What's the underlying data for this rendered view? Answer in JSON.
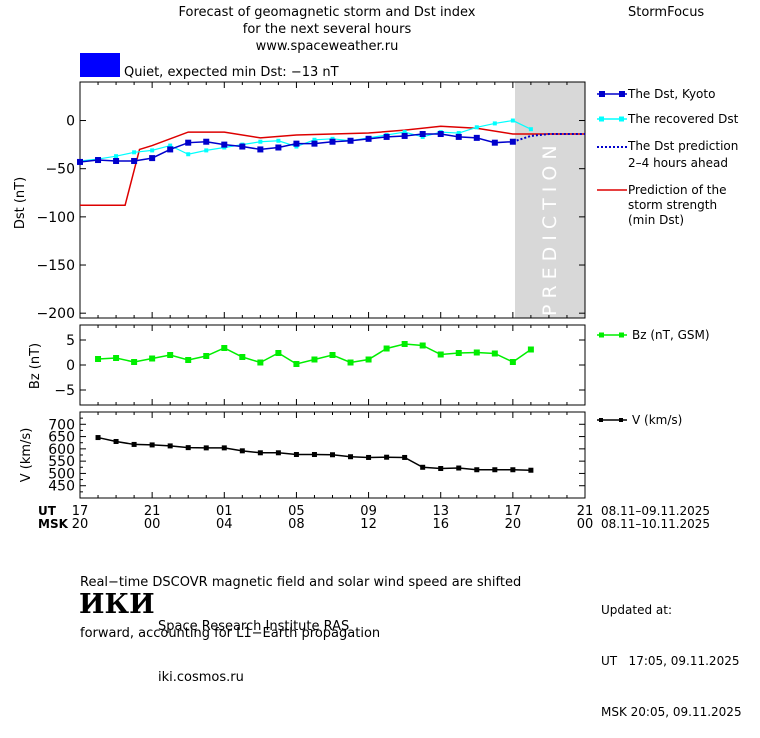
{
  "header": {
    "title_lines": [
      "Forecast of geomagnetic storm and Dst index",
      "for the next several hours",
      "www.spaceweather.ru"
    ],
    "brand": "StormFocus",
    "status_text": "Quiet, expected min Dst: −13 nT",
    "status_color": "#0000ff"
  },
  "legend": {
    "dst_kyoto": "The Dst, Kyoto",
    "dst_recovered": "The recovered Dst",
    "dst_prediction": [
      "The Dst prediction",
      "2–4 hours ahead"
    ],
    "storm_prediction": [
      "Prediction of the",
      "storm strength",
      "(min Dst)"
    ],
    "bz": "Bz (nT, GSM)",
    "v": "V (km/s)"
  },
  "time_axis": {
    "ut_label": "UT",
    "msk_label": "MSK",
    "ut_ticks": [
      "17",
      "21",
      "01",
      "05",
      "09",
      "13",
      "17",
      "21"
    ],
    "msk_ticks": [
      "20",
      "00",
      "04",
      "08",
      "12",
      "16",
      "20",
      "00"
    ],
    "ut_range": "08.11–09.11.2025",
    "msk_range": "08.11–10.11.2025"
  },
  "footer": {
    "note_lines": [
      "Real−time DSCOVR magnetic field and solar wind speed are shifted",
      "forward, accounting for L1−Earth propagation"
    ],
    "logo_text": "ИКИ",
    "institute": "Space Research Institute RAS",
    "site": "iki.cosmos.ru",
    "updated_label": "Updated at:",
    "updated_ut": "UT   17:05, 09.11.2025",
    "updated_msk": "MSK 20:05, 09.11.2025"
  },
  "colors": {
    "dst_kyoto": "#0000cc",
    "dst_recovered": "#00ffff",
    "dst_prediction": "#0000cc",
    "storm_prediction": "#dd0000",
    "bz": "#00ee00",
    "v": "#000000",
    "prediction_band": "#d8d8d8"
  },
  "chart_data": [
    {
      "type": "line",
      "ylabel": "Dst (nT)",
      "xlim": [
        0,
        28
      ],
      "ylim": [
        -205,
        40
      ],
      "yticks": [
        0,
        -50,
        -100,
        -150,
        -200
      ],
      "ytick_labels": [
        "0",
        "−50",
        "−100",
        "−150",
        "−200"
      ],
      "prediction_band": {
        "from": 24,
        "to": 28,
        "label": "PREDICTION"
      },
      "series": [
        {
          "name": "The Dst, Kyoto",
          "style": "line-squares",
          "x": [
            0,
            1,
            2,
            3,
            4,
            5,
            6,
            7,
            8,
            9,
            10,
            11,
            12,
            13,
            14,
            15,
            16,
            17,
            18,
            19,
            20,
            21,
            22,
            23,
            24
          ],
          "values": [
            -43,
            -41,
            -42,
            -42,
            -39,
            -30,
            -23,
            -22,
            -25,
            -27,
            -30,
            -28,
            -24,
            -24,
            -22,
            -21,
            -19,
            -17,
            -16,
            -14,
            -14,
            -17,
            -18,
            -23,
            -22
          ]
        },
        {
          "name": "The recovered Dst",
          "style": "line-squares",
          "x": [
            0,
            1,
            2,
            3,
            4,
            5,
            6,
            7,
            8,
            9,
            10,
            11,
            12,
            13,
            14,
            15,
            16,
            17,
            18,
            19,
            20,
            21,
            22,
            23,
            24,
            25
          ],
          "values": [
            -42,
            -40,
            -37,
            -33,
            -31,
            -26,
            -35,
            -31,
            -28,
            -25,
            -22,
            -21,
            -27,
            -20,
            -19,
            -21,
            -18,
            -15,
            -12,
            -17,
            -12,
            -13,
            -7,
            -3,
            0,
            -9
          ]
        },
        {
          "name": "The Dst prediction 2–4 hours ahead",
          "style": "dotted",
          "x": [
            24,
            25,
            26,
            27,
            28
          ],
          "values": [
            -22,
            -16,
            -14,
            -14,
            -14
          ]
        },
        {
          "name": "Prediction of the storm strength (min Dst)",
          "style": "step",
          "x": [
            0,
            2.5,
            3.3,
            4,
            6,
            8,
            10,
            12,
            14,
            16,
            18,
            20,
            22,
            24,
            28
          ],
          "values": [
            -88,
            -88,
            -30,
            -26,
            -12,
            -12,
            -18,
            -15,
            -14,
            -13,
            -10,
            -6,
            -8,
            -14,
            -14
          ]
        }
      ]
    },
    {
      "type": "line",
      "ylabel": "Bz (nT)",
      "xlim": [
        0,
        28
      ],
      "ylim": [
        -8,
        8
      ],
      "yticks": [
        5,
        0,
        -5
      ],
      "ytick_labels": [
        "5",
        "0",
        "−5"
      ],
      "series": [
        {
          "name": "Bz (nT, GSM)",
          "x": [
            1,
            2,
            3,
            4,
            5,
            6,
            7,
            8,
            9,
            10,
            11,
            12,
            13,
            14,
            15,
            16,
            17,
            18,
            19,
            20,
            21,
            22,
            23,
            24,
            25
          ],
          "values": [
            1.2,
            1.4,
            0.6,
            1.3,
            2.0,
            1.0,
            1.8,
            3.4,
            1.6,
            0.5,
            2.4,
            0.2,
            1.1,
            2.0,
            0.5,
            1.1,
            3.3,
            4.2,
            3.9,
            2.1,
            2.4,
            2.5,
            2.3,
            0.6,
            3.1
          ]
        }
      ]
    },
    {
      "type": "line",
      "ylabel": "V (km/s)",
      "xlim": [
        0,
        28
      ],
      "ylim": [
        400,
        750
      ],
      "yticks": [
        700,
        650,
        600,
        550,
        500,
        450
      ],
      "ytick_labels": [
        "700",
        "650",
        "600",
        "550",
        "500",
        "450"
      ],
      "series": [
        {
          "name": "V (km/s)",
          "x": [
            1,
            2,
            3,
            4,
            5,
            6,
            7,
            8,
            9,
            10,
            11,
            12,
            13,
            14,
            15,
            16,
            17,
            18,
            19,
            20,
            21,
            22,
            23,
            24,
            25
          ],
          "values": [
            646,
            630,
            618,
            616,
            612,
            605,
            604,
            604,
            592,
            584,
            584,
            577,
            577,
            576,
            568,
            565,
            566,
            565,
            525,
            520,
            522,
            515,
            515,
            515,
            513
          ]
        }
      ]
    }
  ]
}
